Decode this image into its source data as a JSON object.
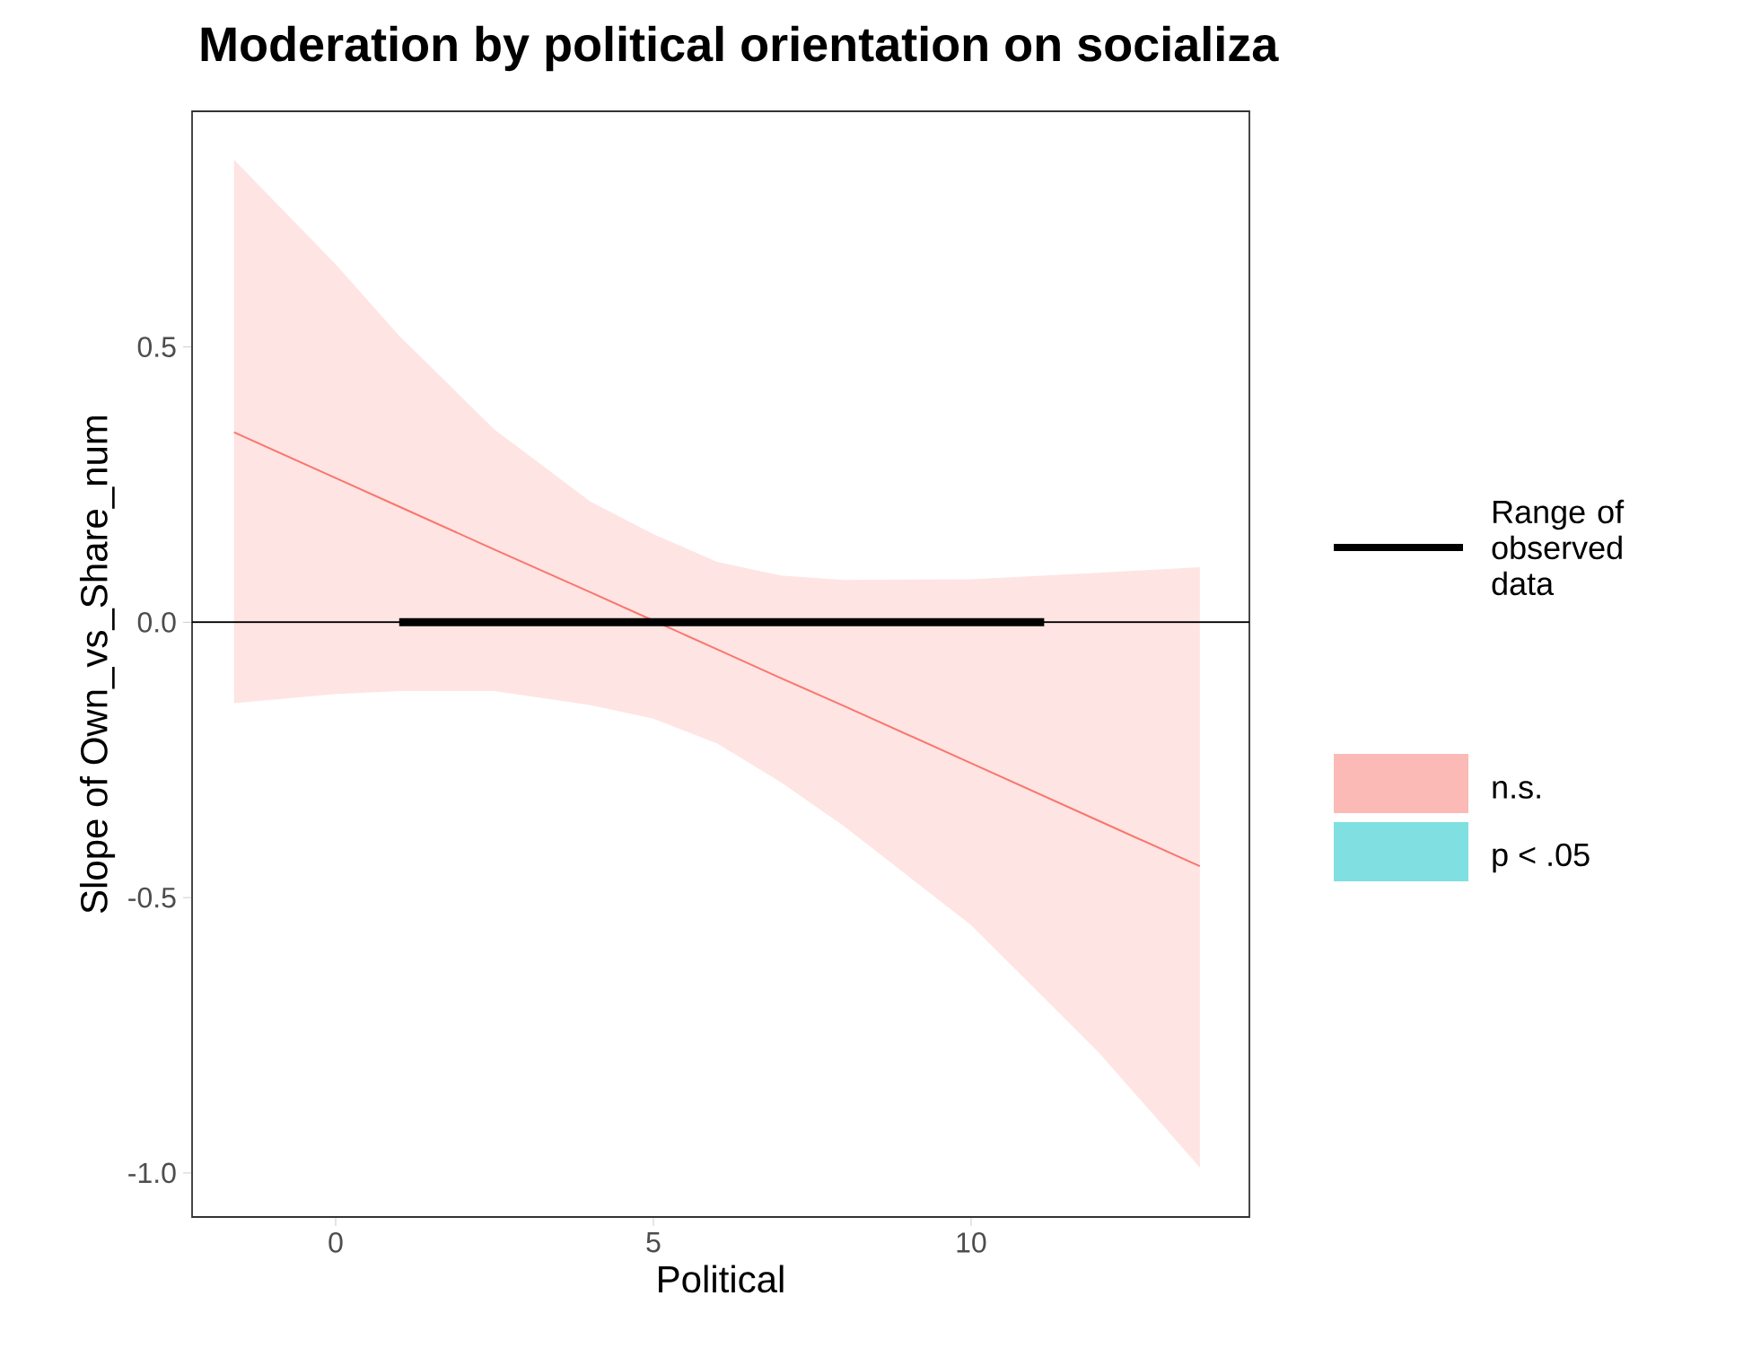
{
  "chart_data": {
    "type": "line",
    "title": "Moderation by political orientation on socializa",
    "xlabel": "Political",
    "ylabel": "Slope of Own_vs_Share_num",
    "xlim": [
      -2.26,
      14.38
    ],
    "ylim": [
      -1.08,
      0.928
    ],
    "xticks": [
      0,
      5,
      10
    ],
    "yticks": [
      {
        "value": -1,
        "label": "-1.0"
      },
      {
        "value": -0.5,
        "label": "-0.5"
      },
      {
        "value": 0,
        "label": "0.0"
      },
      {
        "value": 0.5,
        "label": "0.5"
      }
    ],
    "series": [
      {
        "name": "n.s.",
        "color": "#f8766d",
        "x": [
          -1.6,
          0,
          1,
          2.5,
          4,
          5,
          6,
          7,
          8,
          10,
          12,
          13.6
        ],
        "values": [
          0.345,
          0.262,
          0.21,
          0.132,
          0.055,
          0.003,
          -0.049,
          -0.101,
          -0.152,
          -0.256,
          -0.36,
          -0.443
        ],
        "upper": [
          0.84,
          0.65,
          0.52,
          0.35,
          0.22,
          0.16,
          0.11,
          0.085,
          0.077,
          0.078,
          0.09,
          0.1
        ],
        "lower": [
          -0.147,
          -0.13,
          -0.125,
          -0.125,
          -0.15,
          -0.175,
          -0.22,
          -0.29,
          -0.37,
          -0.55,
          -0.78,
          -0.99
        ]
      },
      {
        "name": "p < .05",
        "type": "area",
        "color": "#00bfc4"
      },
      {
        "name": "Range of observed data",
        "color": "#000000",
        "x": [
          1,
          11.15
        ],
        "values": [
          0,
          0
        ]
      }
    ],
    "ref_lines": [
      {
        "axis": "y",
        "value": 0,
        "color": "#000000"
      }
    ],
    "legend": "right",
    "grid": false
  }
}
